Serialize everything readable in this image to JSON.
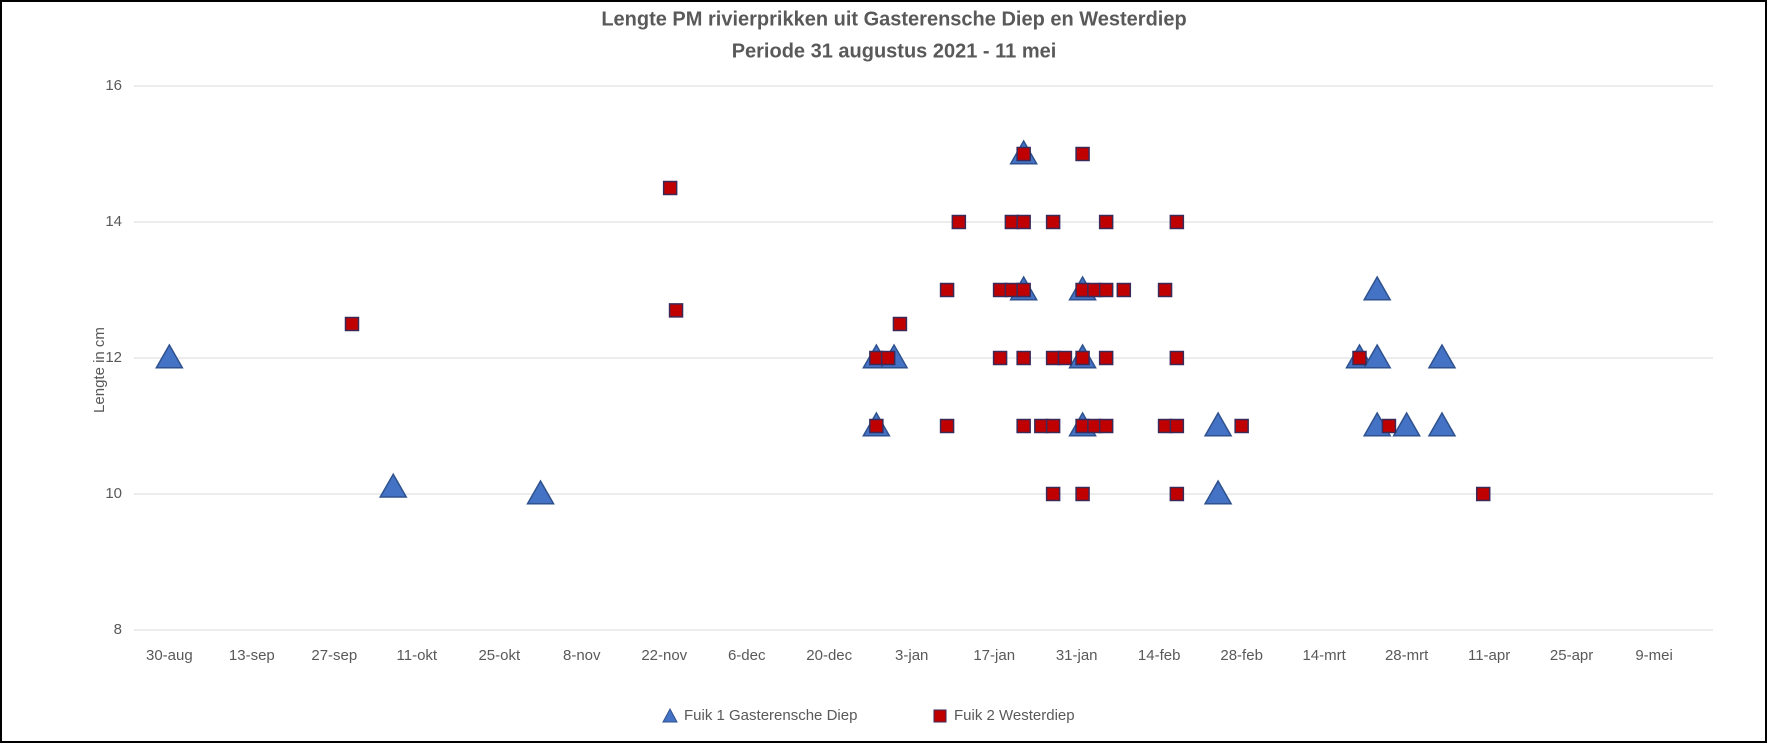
{
  "chart_data": {
    "type": "scatter",
    "title": "Lengte PM rivierprikken uit Gasterensche Diep en Westerdiep",
    "subtitle": "Periode 31 augustus 2021 - 11 mei",
    "y_label": "Lengte in cm",
    "xlim": [
      -6,
      262
    ],
    "xticks": [
      {
        "value": 0,
        "label": "30-aug"
      },
      {
        "value": 14,
        "label": "13-sep"
      },
      {
        "value": 28,
        "label": "27-sep"
      },
      {
        "value": 42,
        "label": "11-okt"
      },
      {
        "value": 56,
        "label": "25-okt"
      },
      {
        "value": 70,
        "label": "8-nov"
      },
      {
        "value": 84,
        "label": "22-nov"
      },
      {
        "value": 98,
        "label": "6-dec"
      },
      {
        "value": 112,
        "label": "20-dec"
      },
      {
        "value": 126,
        "label": "3-jan"
      },
      {
        "value": 140,
        "label": "17-jan"
      },
      {
        "value": 154,
        "label": "31-jan"
      },
      {
        "value": 168,
        "label": "14-feb"
      },
      {
        "value": 182,
        "label": "28-feb"
      },
      {
        "value": 196,
        "label": "14-mrt"
      },
      {
        "value": 210,
        "label": "28-mrt"
      },
      {
        "value": 224,
        "label": "11-apr"
      },
      {
        "value": 238,
        "label": "25-apr"
      },
      {
        "value": 252,
        "label": "9-mei"
      }
    ],
    "ylim": [
      8,
      16
    ],
    "yticks": [
      8,
      10,
      12,
      14,
      16
    ],
    "grid": true,
    "legend": "bottom",
    "series": [
      {
        "name": "Fuik 1 Gasterensche Diep",
        "color": "#4472c4",
        "marker": "triangle",
        "x": [
          0,
          38,
          63,
          120,
          120,
          123,
          145,
          145,
          155,
          155,
          155,
          178,
          178,
          202,
          205,
          205,
          205,
          210,
          216,
          216
        ],
        "values": [
          12,
          10.1,
          10,
          11,
          12,
          12,
          15,
          13,
          13,
          12,
          11,
          11,
          10,
          12,
          12,
          13,
          11,
          11,
          12,
          11
        ]
      },
      {
        "name": "Fuik 2 Westerdiep",
        "color": "#c00000",
        "marker": "square",
        "x": [
          31,
          85,
          86,
          120,
          120,
          122,
          124,
          132,
          132,
          134,
          141,
          141,
          143,
          143,
          145,
          145,
          145,
          145,
          145,
          148,
          150,
          150,
          150,
          150,
          152,
          155,
          155,
          155,
          155,
          155,
          157,
          157,
          159,
          159,
          159,
          159,
          162,
          169,
          169,
          171,
          171,
          171,
          171,
          182,
          202,
          207,
          223
        ],
        "values": [
          12.5,
          14.5,
          12.7,
          11,
          12,
          12,
          12.5,
          13,
          11,
          14,
          13,
          12,
          13,
          14,
          14,
          13,
          12,
          11,
          15,
          11,
          11,
          14,
          12,
          10,
          12,
          15,
          13,
          12,
          11,
          10,
          13,
          11,
          14,
          13,
          12,
          11,
          13,
          13,
          11,
          14,
          12,
          11,
          10,
          11,
          12,
          11,
          10
        ]
      }
    ]
  }
}
